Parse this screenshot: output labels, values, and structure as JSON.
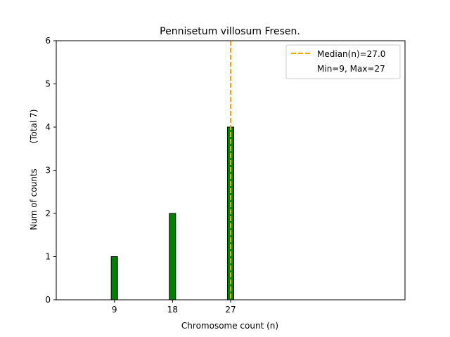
{
  "chart_data": {
    "type": "bar",
    "title": "Pennisetum villosum Fresen.",
    "xlabel": "Chromosome count (n)",
    "ylabel": "Num of counts",
    "ylabel_extra": "(Total 7)",
    "x_ticks": [
      9,
      18,
      27
    ],
    "xlim": [
      0,
      54
    ],
    "ylim": [
      0,
      6
    ],
    "y_ticks": [
      0,
      1,
      2,
      3,
      4,
      5,
      6
    ],
    "grid": false,
    "legend_placement": "top-right",
    "bar_color": "#008000",
    "bar_edge_color": "#000000",
    "median_color": "#FFA500",
    "series": [
      {
        "x": [
          9,
          18,
          27
        ],
        "values": [
          1,
          2,
          4
        ]
      }
    ],
    "median": 27.0,
    "legend": {
      "median_label": "Median(n)=27.0",
      "range_label": "Min=9, Max=27"
    }
  }
}
